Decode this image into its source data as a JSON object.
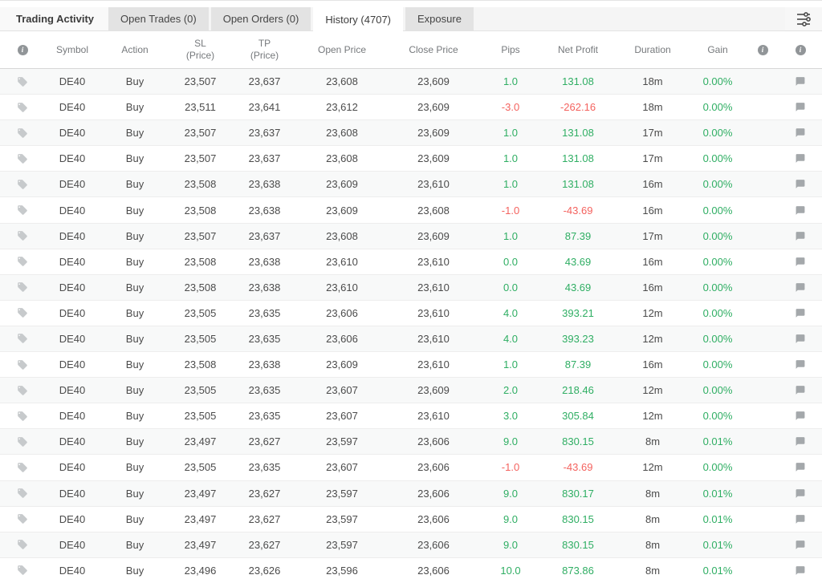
{
  "panel": {
    "title": "Trading Activity"
  },
  "tabs": {
    "items": [
      {
        "label": "Open Trades (0)",
        "active": false
      },
      {
        "label": "Open Orders (0)",
        "active": false
      },
      {
        "label": "History (4707)",
        "active": true
      },
      {
        "label": "Exposure",
        "active": false
      }
    ],
    "filter_icon": "sliders-icon"
  },
  "colors": {
    "positive": "#2fae63",
    "negative": "#f4625e",
    "tab_inactive_bg": "#e3e3e3",
    "tab_active_bg": "#ffffff",
    "row_alt_bg": "#f8f9f9"
  },
  "table": {
    "columns": [
      {
        "id": "tag",
        "icon": "info-icon",
        "label": ""
      },
      {
        "id": "symbol",
        "label": "Symbol"
      },
      {
        "id": "action",
        "label": "Action"
      },
      {
        "id": "sl",
        "label": "SL",
        "sub": "(Price)"
      },
      {
        "id": "tp",
        "label": "TP",
        "sub": "(Price)"
      },
      {
        "id": "open_price",
        "label": "Open Price"
      },
      {
        "id": "close_price",
        "label": "Close Price"
      },
      {
        "id": "pips",
        "label": "Pips"
      },
      {
        "id": "net_profit",
        "label": "Net Profit"
      },
      {
        "id": "duration",
        "label": "Duration"
      },
      {
        "id": "gain",
        "label": "Gain"
      },
      {
        "id": "info1",
        "icon": "info-icon",
        "label": ""
      },
      {
        "id": "info2",
        "icon": "info-icon",
        "label": ""
      }
    ],
    "rows": [
      {
        "symbol": "DE40",
        "action": "Buy",
        "sl": "23,507",
        "tp": "23,637",
        "open_price": "23,608",
        "close_price": "23,609",
        "pips": "1.0",
        "net_profit": "131.08",
        "duration": "18m",
        "gain": "0.00%"
      },
      {
        "symbol": "DE40",
        "action": "Buy",
        "sl": "23,511",
        "tp": "23,641",
        "open_price": "23,612",
        "close_price": "23,609",
        "pips": "-3.0",
        "net_profit": "-262.16",
        "duration": "18m",
        "gain": "0.00%"
      },
      {
        "symbol": "DE40",
        "action": "Buy",
        "sl": "23,507",
        "tp": "23,637",
        "open_price": "23,608",
        "close_price": "23,609",
        "pips": "1.0",
        "net_profit": "131.08",
        "duration": "17m",
        "gain": "0.00%"
      },
      {
        "symbol": "DE40",
        "action": "Buy",
        "sl": "23,507",
        "tp": "23,637",
        "open_price": "23,608",
        "close_price": "23,609",
        "pips": "1.0",
        "net_profit": "131.08",
        "duration": "17m",
        "gain": "0.00%"
      },
      {
        "symbol": "DE40",
        "action": "Buy",
        "sl": "23,508",
        "tp": "23,638",
        "open_price": "23,609",
        "close_price": "23,610",
        "pips": "1.0",
        "net_profit": "131.08",
        "duration": "16m",
        "gain": "0.00%"
      },
      {
        "symbol": "DE40",
        "action": "Buy",
        "sl": "23,508",
        "tp": "23,638",
        "open_price": "23,609",
        "close_price": "23,608",
        "pips": "-1.0",
        "net_profit": "-43.69",
        "duration": "16m",
        "gain": "0.00%"
      },
      {
        "symbol": "DE40",
        "action": "Buy",
        "sl": "23,507",
        "tp": "23,637",
        "open_price": "23,608",
        "close_price": "23,609",
        "pips": "1.0",
        "net_profit": "87.39",
        "duration": "17m",
        "gain": "0.00%"
      },
      {
        "symbol": "DE40",
        "action": "Buy",
        "sl": "23,508",
        "tp": "23,638",
        "open_price": "23,610",
        "close_price": "23,610",
        "pips": "0.0",
        "net_profit": "43.69",
        "duration": "16m",
        "gain": "0.00%"
      },
      {
        "symbol": "DE40",
        "action": "Buy",
        "sl": "23,508",
        "tp": "23,638",
        "open_price": "23,610",
        "close_price": "23,610",
        "pips": "0.0",
        "net_profit": "43.69",
        "duration": "16m",
        "gain": "0.00%"
      },
      {
        "symbol": "DE40",
        "action": "Buy",
        "sl": "23,505",
        "tp": "23,635",
        "open_price": "23,606",
        "close_price": "23,610",
        "pips": "4.0",
        "net_profit": "393.21",
        "duration": "12m",
        "gain": "0.00%"
      },
      {
        "symbol": "DE40",
        "action": "Buy",
        "sl": "23,505",
        "tp": "23,635",
        "open_price": "23,606",
        "close_price": "23,610",
        "pips": "4.0",
        "net_profit": "393.23",
        "duration": "12m",
        "gain": "0.00%"
      },
      {
        "symbol": "DE40",
        "action": "Buy",
        "sl": "23,508",
        "tp": "23,638",
        "open_price": "23,609",
        "close_price": "23,610",
        "pips": "1.0",
        "net_profit": "87.39",
        "duration": "16m",
        "gain": "0.00%"
      },
      {
        "symbol": "DE40",
        "action": "Buy",
        "sl": "23,505",
        "tp": "23,635",
        "open_price": "23,607",
        "close_price": "23,609",
        "pips": "2.0",
        "net_profit": "218.46",
        "duration": "12m",
        "gain": "0.00%"
      },
      {
        "symbol": "DE40",
        "action": "Buy",
        "sl": "23,505",
        "tp": "23,635",
        "open_price": "23,607",
        "close_price": "23,610",
        "pips": "3.0",
        "net_profit": "305.84",
        "duration": "12m",
        "gain": "0.00%"
      },
      {
        "symbol": "DE40",
        "action": "Buy",
        "sl": "23,497",
        "tp": "23,627",
        "open_price": "23,597",
        "close_price": "23,606",
        "pips": "9.0",
        "net_profit": "830.15",
        "duration": "8m",
        "gain": "0.01%"
      },
      {
        "symbol": "DE40",
        "action": "Buy",
        "sl": "23,505",
        "tp": "23,635",
        "open_price": "23,607",
        "close_price": "23,606",
        "pips": "-1.0",
        "net_profit": "-43.69",
        "duration": "12m",
        "gain": "0.00%"
      },
      {
        "symbol": "DE40",
        "action": "Buy",
        "sl": "23,497",
        "tp": "23,627",
        "open_price": "23,597",
        "close_price": "23,606",
        "pips": "9.0",
        "net_profit": "830.17",
        "duration": "8m",
        "gain": "0.01%"
      },
      {
        "symbol": "DE40",
        "action": "Buy",
        "sl": "23,497",
        "tp": "23,627",
        "open_price": "23,597",
        "close_price": "23,606",
        "pips": "9.0",
        "net_profit": "830.15",
        "duration": "8m",
        "gain": "0.01%"
      },
      {
        "symbol": "DE40",
        "action": "Buy",
        "sl": "23,497",
        "tp": "23,627",
        "open_price": "23,597",
        "close_price": "23,606",
        "pips": "9.0",
        "net_profit": "830.15",
        "duration": "8m",
        "gain": "0.01%"
      },
      {
        "symbol": "DE40",
        "action": "Buy",
        "sl": "23,496",
        "tp": "23,626",
        "open_price": "23,596",
        "close_price": "23,606",
        "pips": "10.0",
        "net_profit": "873.86",
        "duration": "8m",
        "gain": "0.01%"
      }
    ]
  }
}
